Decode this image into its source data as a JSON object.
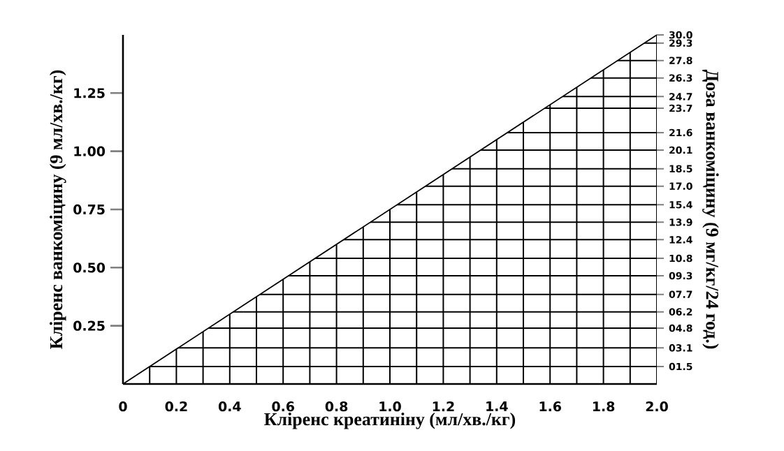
{
  "chart_data": {
    "type": "line",
    "xlabel": "Кліренс креатиніну (мл/хв./кг)",
    "ylabel": "Кліренс ванкоміцину (9 мл/хв./кг)",
    "y2label": "Доза ванкоміцину (9 мг/кг/24 год.)",
    "x": [
      0,
      2.0
    ],
    "values": [
      0,
      1.5
    ],
    "color": "#000000",
    "grid": true,
    "xlim": [
      0,
      2.0
    ],
    "ylim": [
      0,
      1.5
    ],
    "y2lim": [
      0,
      30
    ],
    "xticks": [
      0,
      {
        "value": 0.1,
        "label": null
      },
      0.2,
      {
        "value": 0.3,
        "label": null
      },
      0.4,
      {
        "value": 0.5,
        "label": null
      },
      0.6,
      {
        "value": 0.7,
        "label": null
      },
      0.8,
      {
        "value": 0.9,
        "label": null
      },
      {
        "value": 1.0,
        "label": "1.0"
      },
      {
        "value": 1.1,
        "label": null
      },
      1.2,
      {
        "value": 1.3,
        "label": null
      },
      1.4,
      {
        "value": 1.5,
        "label": null
      },
      1.6,
      {
        "value": 1.7,
        "label": null
      },
      1.8,
      {
        "value": 1.9,
        "label": null
      },
      {
        "value": 2.0,
        "label": "2.0"
      }
    ],
    "yticks": [
      0.25,
      {
        "value": 0.5,
        "label": "0.50"
      },
      0.75,
      {
        "value": 1.0,
        "label": "1.00"
      },
      1.25
    ],
    "y2ticks": [
      {
        "value": 1.5,
        "label": "01.5"
      },
      {
        "value": 3.1,
        "label": "03.1"
      },
      {
        "value": 4.8,
        "label": "04.8"
      },
      {
        "value": 6.2,
        "label": "06.2"
      },
      {
        "value": 7.7,
        "label": "07.7"
      },
      {
        "value": 9.3,
        "label": "09.3"
      },
      10.8,
      12.4,
      13.9,
      15.4,
      {
        "value": 17.0,
        "label": "17.0"
      },
      18.5,
      20.1,
      21.6,
      23.7,
      24.7,
      26.3,
      27.8,
      29.3,
      {
        "value": 30.0,
        "label": "30.0"
      }
    ]
  }
}
